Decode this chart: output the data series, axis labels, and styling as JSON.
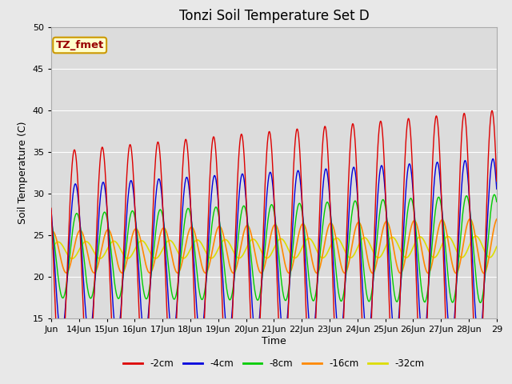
{
  "title": "Tonzi Soil Temperature Set D",
  "xlabel": "Time",
  "ylabel": "Soil Temperature (C)",
  "ylim": [
    15,
    50
  ],
  "legend_labels": [
    "-2cm",
    "-4cm",
    "-8cm",
    "-16cm",
    "-32cm"
  ],
  "legend_colors": [
    "#dd0000",
    "#0000dd",
    "#00cc00",
    "#ff8800",
    "#dddd00"
  ],
  "background_color": "#e8e8e8",
  "plot_bg_color": "#dcdcdc",
  "annotation_text": "TZ_fmet",
  "annotation_bg": "#ffffcc",
  "annotation_border": "#cc9900",
  "title_fontsize": 12,
  "axis_label_fontsize": 9,
  "tick_fontsize": 8
}
